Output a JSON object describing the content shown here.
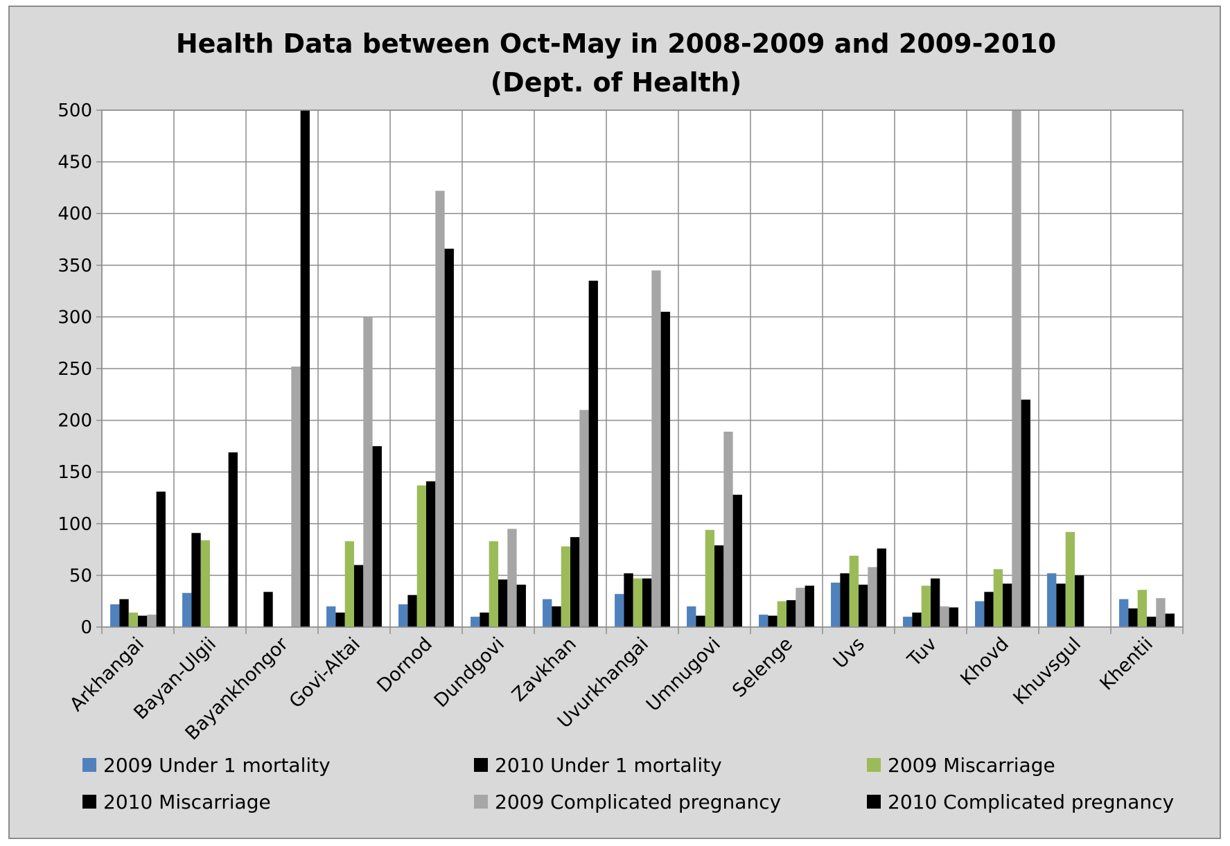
{
  "chart_data": {
    "type": "bar",
    "title": "Health Data between Oct-May in 2008-2009 and 2009-2010",
    "subtitle": "(Dept. of Health)",
    "xlabel": "",
    "ylabel": "",
    "ylim": [
      0,
      500
    ],
    "yticks": [
      0,
      50,
      100,
      150,
      200,
      250,
      300,
      350,
      400,
      450,
      500
    ],
    "grid": true,
    "legend_position": "bottom",
    "categories": [
      "Arkhangai",
      "Bayan-Ulgii",
      "Bayankhongor",
      "Govi-Altai",
      "Dornod",
      "Dundgovi",
      "Zavkhan",
      "Uvurkhangai",
      "Umnugovi",
      "Selenge",
      "Uvs",
      "Tuv",
      "Khovd",
      "Khuvsgul",
      "Khentii"
    ],
    "series": [
      {
        "name": "2009 Under 1 mortality",
        "color": "#4f81bd",
        "values": [
          22,
          33,
          0,
          20,
          22,
          10,
          27,
          32,
          20,
          12,
          43,
          10,
          25,
          52,
          27
        ]
      },
      {
        "name": "2010 Under 1 mortality",
        "color": "#000000",
        "values": [
          27,
          91,
          34,
          14,
          31,
          14,
          20,
          52,
          11,
          11,
          52,
          14,
          34,
          42,
          18
        ]
      },
      {
        "name": "2009 Miscarriage",
        "color": "#9bbb59",
        "values": [
          14,
          84,
          0,
          83,
          137,
          83,
          78,
          47,
          94,
          25,
          69,
          40,
          56,
          92,
          36
        ]
      },
      {
        "name": "2010 Miscarriage",
        "color": "#000000",
        "values": [
          11,
          0,
          0,
          60,
          141,
          46,
          87,
          47,
          79,
          26,
          41,
          47,
          42,
          50,
          10
        ]
      },
      {
        "name": "2009 Complicated pregnancy",
        "color": "#a6a6a6",
        "values": [
          12,
          0,
          252,
          300,
          422,
          95,
          210,
          345,
          189,
          38,
          58,
          20,
          500,
          0,
          28
        ]
      },
      {
        "name": "2010 Complicated pregnancy",
        "color": "#000000",
        "values": [
          131,
          169,
          500,
          175,
          366,
          41,
          335,
          305,
          128,
          40,
          76,
          19,
          220,
          0,
          13
        ]
      }
    ]
  }
}
